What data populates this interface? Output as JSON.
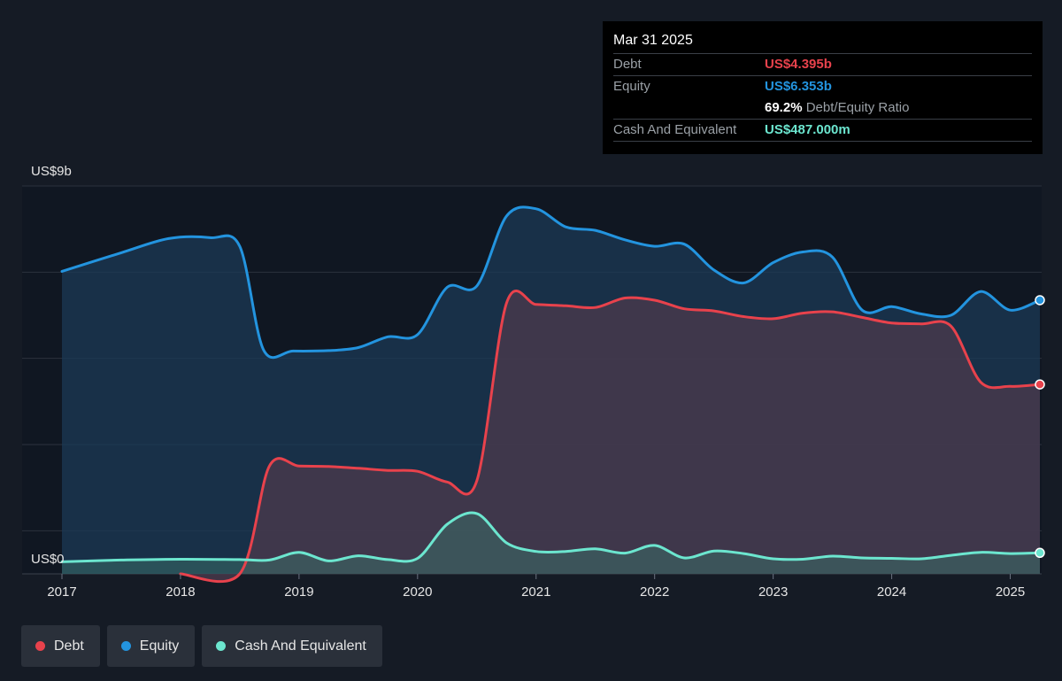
{
  "tooltip": {
    "date": "Mar 31 2025",
    "debt_label": "Debt",
    "debt_value": "US$4.395b",
    "equity_label": "Equity",
    "equity_value": "US$6.353b",
    "ratio_value": "69.2%",
    "ratio_label": "Debt/Equity Ratio",
    "cash_label": "Cash And Equivalent",
    "cash_value": "US$487.000m"
  },
  "legend": [
    {
      "label": "Debt",
      "color": "#e8424c"
    },
    {
      "label": "Equity",
      "color": "#2394df"
    },
    {
      "label": "Cash And Equivalent",
      "color": "#6ce6cf"
    }
  ],
  "chart_data": {
    "type": "area",
    "ylabel_top": "US$9b",
    "ylabel_bottom": "US$0",
    "ylim": [
      0,
      9
    ],
    "xlim": [
      2017.0,
      2025.25
    ],
    "x_ticks": [
      "2017",
      "2018",
      "2019",
      "2020",
      "2021",
      "2022",
      "2023",
      "2024",
      "2025"
    ],
    "grid": true,
    "series": [
      {
        "name": "Equity",
        "color": "#2394df",
        "points": [
          [
            2017.0,
            7.02
          ],
          [
            2017.5,
            7.45
          ],
          [
            2017.9,
            7.78
          ],
          [
            2018.25,
            7.8
          ],
          [
            2018.5,
            7.6
          ],
          [
            2018.7,
            5.2
          ],
          [
            2018.95,
            5.17
          ],
          [
            2019.25,
            5.18
          ],
          [
            2019.5,
            5.25
          ],
          [
            2019.75,
            5.5
          ],
          [
            2020.0,
            5.55
          ],
          [
            2020.25,
            6.65
          ],
          [
            2020.5,
            6.68
          ],
          [
            2020.75,
            8.3
          ],
          [
            2021.0,
            8.47
          ],
          [
            2021.25,
            8.05
          ],
          [
            2021.5,
            7.97
          ],
          [
            2021.75,
            7.75
          ],
          [
            2022.0,
            7.6
          ],
          [
            2022.25,
            7.65
          ],
          [
            2022.5,
            7.05
          ],
          [
            2022.75,
            6.75
          ],
          [
            2023.0,
            7.22
          ],
          [
            2023.25,
            7.47
          ],
          [
            2023.5,
            7.35
          ],
          [
            2023.75,
            6.12
          ],
          [
            2024.0,
            6.2
          ],
          [
            2024.25,
            6.03
          ],
          [
            2024.5,
            6.0
          ],
          [
            2024.75,
            6.55
          ],
          [
            2025.0,
            6.12
          ],
          [
            2025.25,
            6.35
          ]
        ]
      },
      {
        "name": "Debt",
        "color": "#e8424c",
        "points": [
          [
            2018.0,
            0.0
          ],
          [
            2018.5,
            0.0
          ],
          [
            2018.75,
            2.5
          ],
          [
            2019.0,
            2.5
          ],
          [
            2019.25,
            2.49
          ],
          [
            2019.5,
            2.45
          ],
          [
            2019.75,
            2.4
          ],
          [
            2020.0,
            2.38
          ],
          [
            2020.25,
            2.13
          ],
          [
            2020.5,
            2.16
          ],
          [
            2020.75,
            6.28
          ],
          [
            2021.0,
            6.25
          ],
          [
            2021.25,
            6.22
          ],
          [
            2021.5,
            6.18
          ],
          [
            2021.75,
            6.4
          ],
          [
            2022.0,
            6.35
          ],
          [
            2022.25,
            6.15
          ],
          [
            2022.5,
            6.1
          ],
          [
            2022.75,
            5.97
          ],
          [
            2023.0,
            5.92
          ],
          [
            2023.25,
            6.05
          ],
          [
            2023.5,
            6.08
          ],
          [
            2023.75,
            5.95
          ],
          [
            2024.0,
            5.82
          ],
          [
            2024.25,
            5.8
          ],
          [
            2024.5,
            5.75
          ],
          [
            2024.75,
            4.45
          ],
          [
            2025.0,
            4.35
          ],
          [
            2025.25,
            4.395
          ]
        ]
      },
      {
        "name": "Cash And Equivalent",
        "color": "#6ce6cf",
        "points": [
          [
            2017.0,
            0.28
          ],
          [
            2017.5,
            0.32
          ],
          [
            2018.0,
            0.34
          ],
          [
            2018.5,
            0.33
          ],
          [
            2018.75,
            0.32
          ],
          [
            2019.0,
            0.5
          ],
          [
            2019.25,
            0.3
          ],
          [
            2019.5,
            0.42
          ],
          [
            2019.75,
            0.33
          ],
          [
            2020.0,
            0.36
          ],
          [
            2020.25,
            1.15
          ],
          [
            2020.5,
            1.4
          ],
          [
            2020.75,
            0.72
          ],
          [
            2021.0,
            0.52
          ],
          [
            2021.25,
            0.52
          ],
          [
            2021.5,
            0.58
          ],
          [
            2021.75,
            0.48
          ],
          [
            2022.0,
            0.66
          ],
          [
            2022.25,
            0.37
          ],
          [
            2022.5,
            0.53
          ],
          [
            2022.75,
            0.47
          ],
          [
            2023.0,
            0.35
          ],
          [
            2023.25,
            0.34
          ],
          [
            2023.5,
            0.41
          ],
          [
            2023.75,
            0.37
          ],
          [
            2024.0,
            0.36
          ],
          [
            2024.25,
            0.35
          ],
          [
            2024.5,
            0.43
          ],
          [
            2024.75,
            0.5
          ],
          [
            2025.0,
            0.47
          ],
          [
            2025.25,
            0.487
          ]
        ]
      }
    ]
  }
}
